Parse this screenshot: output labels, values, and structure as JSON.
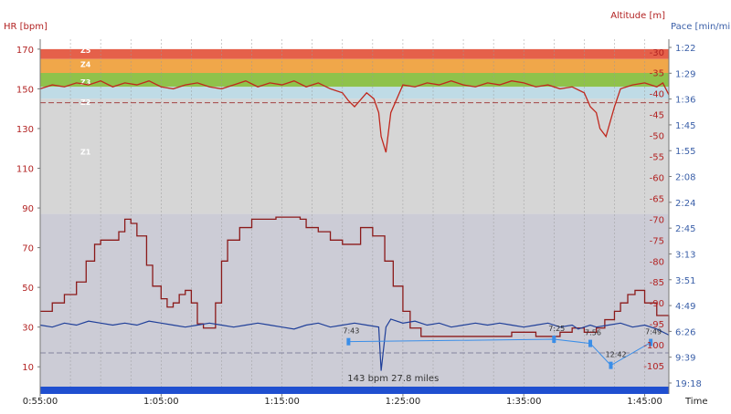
{
  "chart_data": {
    "type": "line",
    "axes": {
      "hr": {
        "title": "HR [bpm]",
        "range": [
          0,
          175
        ],
        "ticks": [
          "10",
          "30",
          "50",
          "70",
          "90",
          "110",
          "130",
          "150",
          "170"
        ]
      },
      "altitude": {
        "title": "Altitude [m]",
        "range": [
          -110,
          -27
        ],
        "ticks": [
          "-30",
          "-35",
          "-40",
          "-45",
          "-50",
          "-55",
          "-60",
          "-65",
          "-70",
          "-75",
          "-80",
          "-85",
          "-90",
          "-95",
          "-100",
          "-105"
        ]
      },
      "pace": {
        "title": "Pace [min/mile]",
        "ticks": [
          "1:22",
          "1:29",
          "1:36",
          "1:45",
          "1:55",
          "2:08",
          "2:24",
          "2:45",
          "3:13",
          "3:51",
          "4:49",
          "6:26",
          "9:39",
          "19:18"
        ]
      },
      "time": {
        "title": "Time",
        "range": [
          55,
          107
        ],
        "ticks": [
          "0:55:00",
          "1:05:00",
          "1:15:00",
          "1:25:00",
          "1:35:00",
          "1:45:00"
        ]
      }
    },
    "hr_zones": [
      {
        "name": "Z5",
        "min": 165,
        "max": 170,
        "color": "#e5604a"
      },
      {
        "name": "Z4",
        "min": 158,
        "max": 165,
        "color": "#f0a74a"
      },
      {
        "name": "Z3",
        "min": 151,
        "max": 158,
        "color": "#8fc24b"
      },
      {
        "name": "Z2",
        "min": 145,
        "max": 151,
        "color": "#bfdbe6"
      },
      {
        "name": "Z1",
        "min": 87,
        "max": 145,
        "color": "#d6d6d6"
      }
    ],
    "reference_line_hr": 143,
    "annotation": "143 bpm 27.8 miles",
    "series": [
      {
        "axis": "hr",
        "color": "#c0281e",
        "x": [
          55,
          56,
          57,
          58,
          59,
          60,
          61,
          62,
          63,
          64,
          65,
          66,
          67,
          68,
          69,
          70,
          71,
          72,
          73,
          74,
          75,
          76,
          77,
          78,
          79,
          80,
          80.5,
          81,
          82,
          82.6,
          83,
          83.2,
          83.6,
          84,
          85,
          86,
          87,
          88,
          89,
          90,
          91,
          92,
          93,
          94,
          95,
          96,
          97,
          98,
          99,
          100,
          100.5,
          101,
          101.3,
          101.8,
          102.5,
          103,
          104,
          105,
          106,
          106.5,
          107
        ],
        "y": [
          150,
          152,
          151,
          153,
          152,
          154,
          151,
          153,
          152,
          154,
          151,
          150,
          152,
          153,
          151,
          150,
          152,
          154,
          151,
          153,
          152,
          154,
          151,
          153,
          150,
          148,
          144,
          141,
          148,
          145,
          138,
          126,
          118,
          138,
          152,
          151,
          153,
          152,
          154,
          152,
          151,
          153,
          152,
          154,
          153,
          151,
          152,
          150,
          151,
          148,
          141,
          138,
          130,
          126,
          141,
          150,
          152,
          153,
          151,
          153,
          147
        ]
      },
      {
        "axis": "altitude",
        "color": "#8b1a1a",
        "x": [
          55,
          56,
          57,
          58,
          58.8,
          59.5,
          60,
          60.8,
          61.5,
          62,
          62.5,
          63,
          63.8,
          64.3,
          65,
          65.5,
          66,
          66.5,
          67,
          67.5,
          68,
          68.5,
          69.5,
          70,
          70.5,
          71.5,
          72.5,
          73.5,
          74.5,
          75.5,
          76.5,
          77,
          78,
          79,
          80,
          81,
          81.5,
          82.5,
          83.5,
          84.2,
          85,
          85.6,
          86.5,
          87,
          88,
          90,
          92,
          94,
          96,
          98,
          99,
          100,
          101,
          101.7,
          102.5,
          103,
          103.6,
          104.2,
          105,
          106,
          107
        ],
        "y": [
          -92,
          -90,
          -88,
          -85,
          -80,
          -76,
          -75,
          -75,
          -73,
          -70,
          -71,
          -74,
          -81,
          -86,
          -89,
          -91,
          -90,
          -88,
          -87,
          -90,
          -95,
          -96,
          -90,
          -80,
          -75,
          -72,
          -70,
          -70,
          -69.5,
          -69.5,
          -70,
          -72,
          -73,
          -75,
          -76,
          -76,
          -72,
          -74,
          -80,
          -86,
          -92,
          -96,
          -98,
          -98,
          -98,
          -98,
          -98,
          -97,
          -98,
          -97,
          -96,
          -97,
          -96,
          -94,
          -92,
          -90,
          -88,
          -87,
          -90,
          -93,
          -97
        ]
      },
      {
        "axis": "hr",
        "color": "#1f3f99",
        "x": [
          55,
          56,
          57,
          58,
          59,
          60,
          61,
          62,
          63,
          64,
          65,
          66,
          67,
          68,
          69,
          70,
          71,
          72,
          73,
          74,
          75,
          76,
          77,
          78,
          79,
          80,
          81,
          82,
          83,
          83.2,
          83.6,
          84,
          85,
          86,
          87,
          88,
          89,
          90,
          91,
          92,
          93,
          94,
          95,
          96,
          97,
          98,
          99,
          99.5,
          100,
          100.5,
          101,
          102,
          103,
          104,
          105,
          106,
          107
        ],
        "y": [
          31,
          30,
          32,
          31,
          33,
          32,
          31,
          32,
          31,
          33,
          32,
          31,
          30,
          31,
          32,
          31,
          30,
          31,
          32,
          31,
          30,
          29,
          31,
          32,
          30,
          31,
          32,
          31,
          30,
          8,
          30,
          34,
          32,
          33,
          31,
          32,
          30,
          31,
          32,
          31,
          32,
          31,
          30,
          31,
          32,
          30,
          31,
          29,
          30,
          31,
          30,
          31,
          32,
          30,
          31,
          29,
          26
        ]
      },
      {
        "axis": "lap-pace",
        "color": "#3a8ee8",
        "points": [
          {
            "t": 80.5,
            "pace": "7:43"
          },
          {
            "t": 97.5,
            "pace": "7:25"
          },
          {
            "t": 100.5,
            "pace": "7:56"
          },
          {
            "t": 102.2,
            "pace": "12:42"
          },
          {
            "t": 105.5,
            "pace": "7:49"
          }
        ]
      }
    ],
    "legend": "none",
    "grid": true
  }
}
